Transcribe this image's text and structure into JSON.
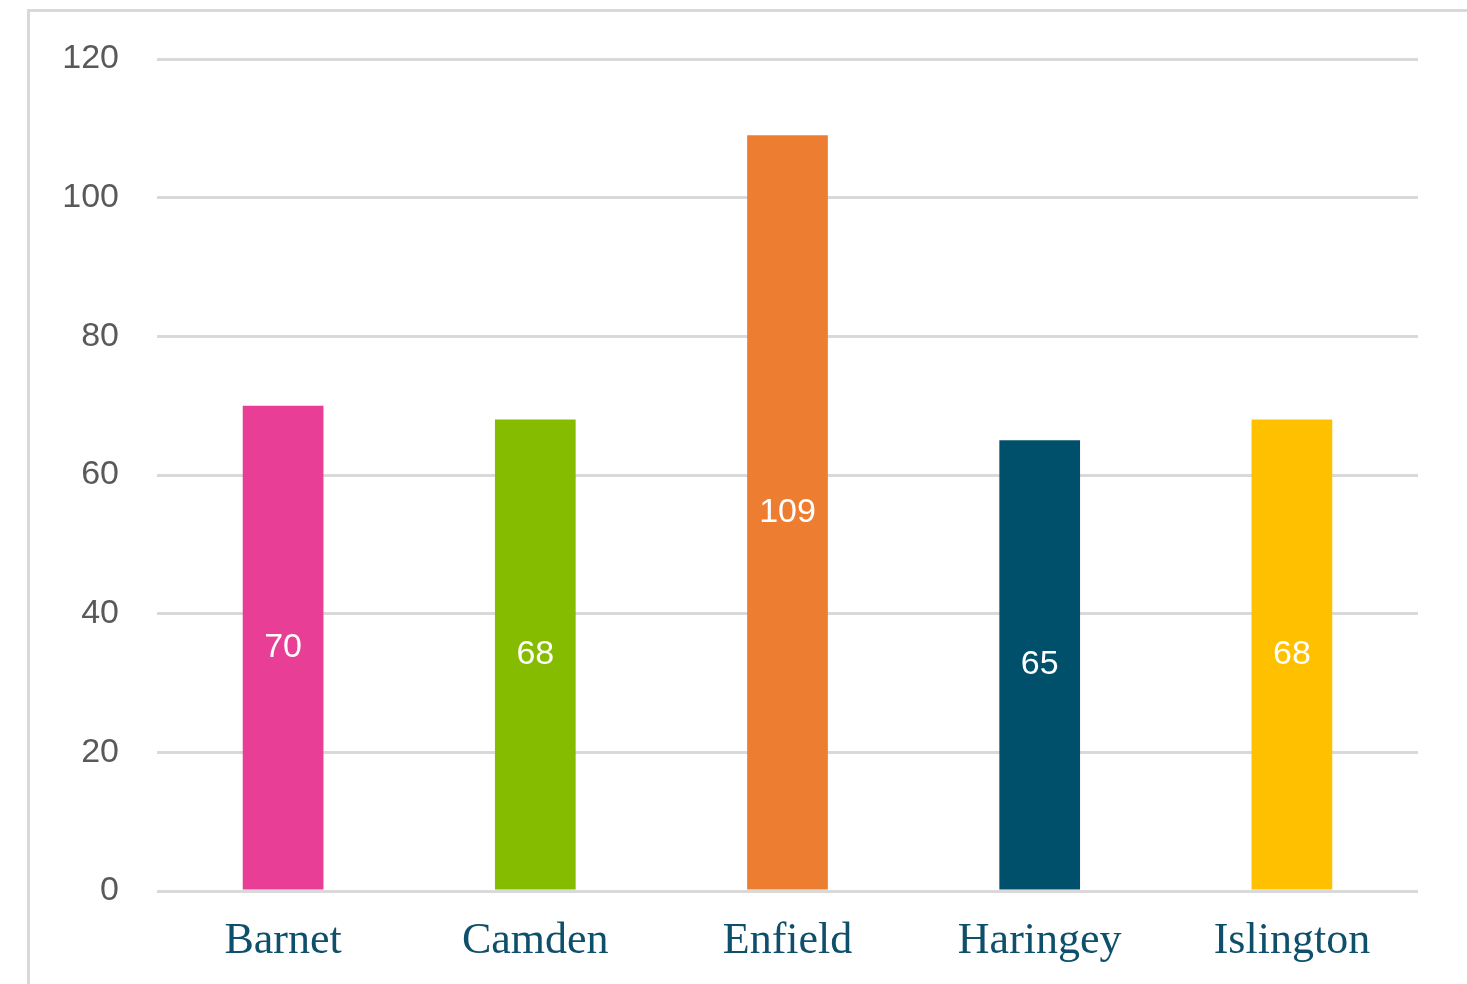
{
  "chart_data": {
    "type": "bar",
    "categories": [
      "Barnet",
      "Camden",
      "Enfield",
      "Haringey",
      "Islington"
    ],
    "values": [
      70,
      68,
      109,
      65,
      68
    ],
    "colors": [
      "#e83e96",
      "#86bc00",
      "#ed7d31",
      "#00506b",
      "#ffc000"
    ],
    "ylim": [
      0,
      120
    ],
    "yticks": [
      0,
      20,
      40,
      60,
      80,
      100,
      120
    ],
    "grid": "y",
    "data_labels": true
  }
}
